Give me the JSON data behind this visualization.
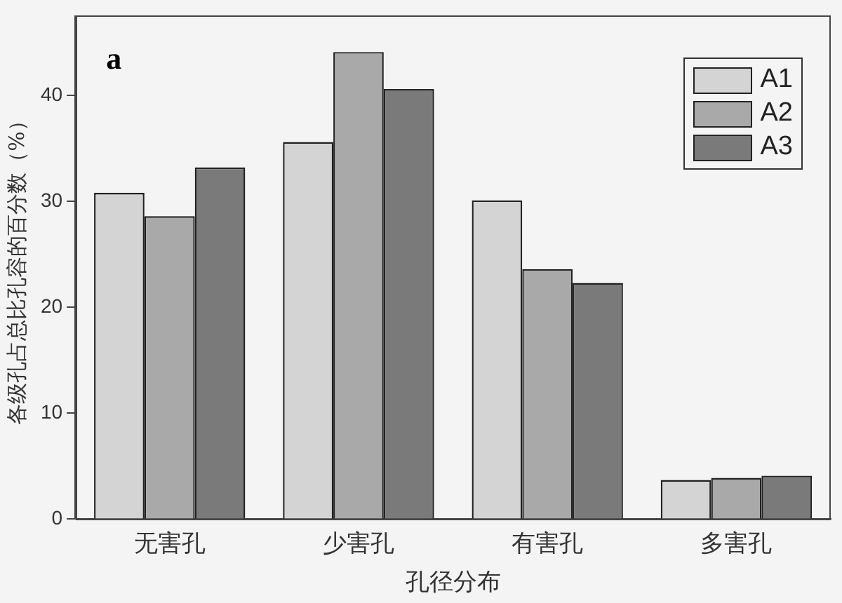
{
  "chart_data": {
    "type": "bar",
    "xlabel": "孔径分布",
    "ylabel": "各级孔占总比孔容的百分数（%）",
    "categories": [
      "无害孔",
      "少害孔",
      "有害孔",
      "多害孔"
    ],
    "series": [
      {
        "name": "A1",
        "color": "#d4d4d4",
        "values": [
          30.8,
          35.6,
          30.1,
          3.7
        ]
      },
      {
        "name": "A2",
        "color": "#a9a9a9",
        "values": [
          28.6,
          44.1,
          23.6,
          3.9
        ]
      },
      {
        "name": "A3",
        "color": "#7a7a7a",
        "values": [
          33.2,
          40.6,
          22.3,
          4.1
        ]
      }
    ],
    "ylim": [
      0,
      47.5
    ],
    "yticks": [
      0,
      10,
      20,
      30,
      40
    ],
    "grid": false,
    "legend": "top right",
    "annotations": [
      "a"
    ]
  }
}
